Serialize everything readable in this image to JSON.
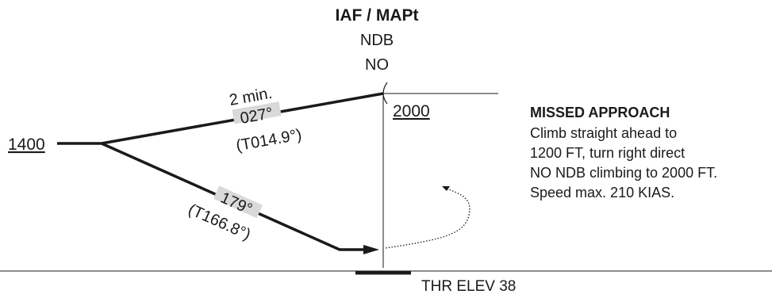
{
  "fix": {
    "name": "IAF / MAPt",
    "type": "NDB",
    "ident": "NO"
  },
  "altitudes": {
    "initial": "1400",
    "fix": "2000"
  },
  "outbound_leg": {
    "time": "2 min.",
    "magnetic": "027°",
    "true": "(T014.9°)"
  },
  "inbound_leg": {
    "magnetic": "179°",
    "true": "(T166.8°)"
  },
  "missed_approach": {
    "title": "MISSED APPROACH",
    "lines": [
      "Climb straight ahead to",
      "1200 FT, turn right direct",
      "NO NDB climbing to 2000 FT.",
      "Speed max. 210 KIAS."
    ]
  },
  "threshold": {
    "label": "THR ELEV 38"
  },
  "colors": {
    "ink": "#1a1a1a",
    "label_halo": "#d9d9d9"
  }
}
